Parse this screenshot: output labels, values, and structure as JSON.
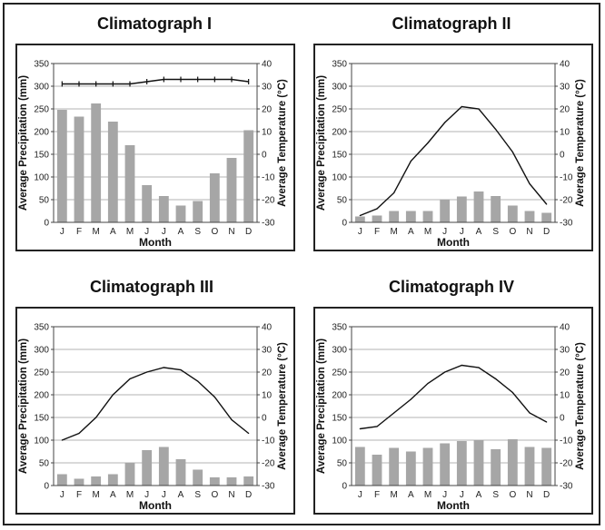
{
  "chart_data": [
    {
      "type": "bar",
      "title": "Climatograph I",
      "xlabel": "Month",
      "ylabel": "Average Precipitation (mm)",
      "y2label": "Average Temperature (°C)",
      "categories": [
        "J",
        "F",
        "M",
        "A",
        "M",
        "J",
        "J",
        "A",
        "S",
        "O",
        "N",
        "D"
      ],
      "ylim": [
        0,
        350
      ],
      "yticks": [
        0,
        50,
        100,
        150,
        200,
        250,
        300,
        350
      ],
      "y2lim": [
        -30,
        40
      ],
      "y2ticks": [
        -30,
        -20,
        -10,
        0,
        10,
        20,
        30,
        40
      ],
      "precipitation": [
        248,
        233,
        262,
        222,
        170,
        82,
        58,
        37,
        47,
        108,
        142,
        203
      ],
      "temperature": [
        31,
        31,
        31,
        31,
        31,
        32,
        33,
        33,
        33,
        33,
        33,
        32
      ],
      "temperature_markers": true,
      "grid": true,
      "bar_color": "#a6a6a6",
      "line_color": "#111111"
    },
    {
      "type": "bar",
      "title": "Climatograph II",
      "xlabel": "Month",
      "ylabel": "Average Precipitation (mm)",
      "y2label": "Average Temperature (°C)",
      "categories": [
        "J",
        "F",
        "M",
        "A",
        "M",
        "J",
        "J",
        "A",
        "S",
        "O",
        "N",
        "D"
      ],
      "ylim": [
        0,
        350
      ],
      "yticks": [
        0,
        50,
        100,
        150,
        200,
        250,
        300,
        350
      ],
      "y2lim": [
        -30,
        40
      ],
      "y2ticks": [
        -30,
        -20,
        -10,
        0,
        10,
        20,
        30,
        40
      ],
      "precipitation": [
        13,
        15,
        25,
        25,
        25,
        50,
        57,
        68,
        58,
        37,
        25,
        21
      ],
      "temperature": [
        -27,
        -24,
        -17,
        -3,
        5,
        14,
        21,
        20,
        11,
        1,
        -13,
        -22
      ],
      "temperature_markers": false,
      "grid": true,
      "bar_color": "#a6a6a6",
      "line_color": "#111111"
    },
    {
      "type": "bar",
      "title": "Climatograph III",
      "xlabel": "Month",
      "ylabel": "Average Precipitation (mm)",
      "y2label": "Average Temperature (°C)",
      "categories": [
        "J",
        "F",
        "M",
        "A",
        "M",
        "J",
        "J",
        "A",
        "S",
        "O",
        "N",
        "D"
      ],
      "ylim": [
        0,
        350
      ],
      "yticks": [
        0,
        50,
        100,
        150,
        200,
        250,
        300,
        350
      ],
      "y2lim": [
        -30,
        40
      ],
      "y2ticks": [
        -30,
        -20,
        -10,
        0,
        10,
        20,
        30,
        40
      ],
      "precipitation": [
        25,
        15,
        20,
        25,
        50,
        78,
        85,
        58,
        35,
        18,
        18,
        20
      ],
      "temperature": [
        -10,
        -7,
        0,
        10,
        17,
        20,
        22,
        21,
        16,
        9,
        -1,
        -7
      ],
      "temperature_markers": false,
      "grid": true,
      "bar_color": "#a6a6a6",
      "line_color": "#111111"
    },
    {
      "type": "bar",
      "title": "Climatograph IV",
      "xlabel": "Month",
      "ylabel": "Average Precipitation (mm)",
      "y2label": "Average Temperature (°C)",
      "categories": [
        "J",
        "F",
        "M",
        "A",
        "M",
        "J",
        "J",
        "A",
        "S",
        "O",
        "N",
        "D"
      ],
      "ylim": [
        0,
        350
      ],
      "yticks": [
        0,
        50,
        100,
        150,
        200,
        250,
        300,
        350
      ],
      "y2lim": [
        -30,
        40
      ],
      "y2ticks": [
        -30,
        -20,
        -10,
        0,
        10,
        20,
        30,
        40
      ],
      "precipitation": [
        85,
        68,
        83,
        75,
        83,
        93,
        98,
        100,
        80,
        102,
        85,
        83
      ],
      "temperature": [
        -5,
        -4,
        2,
        8,
        15,
        20,
        23,
        22,
        17,
        11,
        2,
        -2
      ],
      "temperature_markers": false,
      "grid": true,
      "bar_color": "#a6a6a6",
      "line_color": "#111111"
    }
  ]
}
